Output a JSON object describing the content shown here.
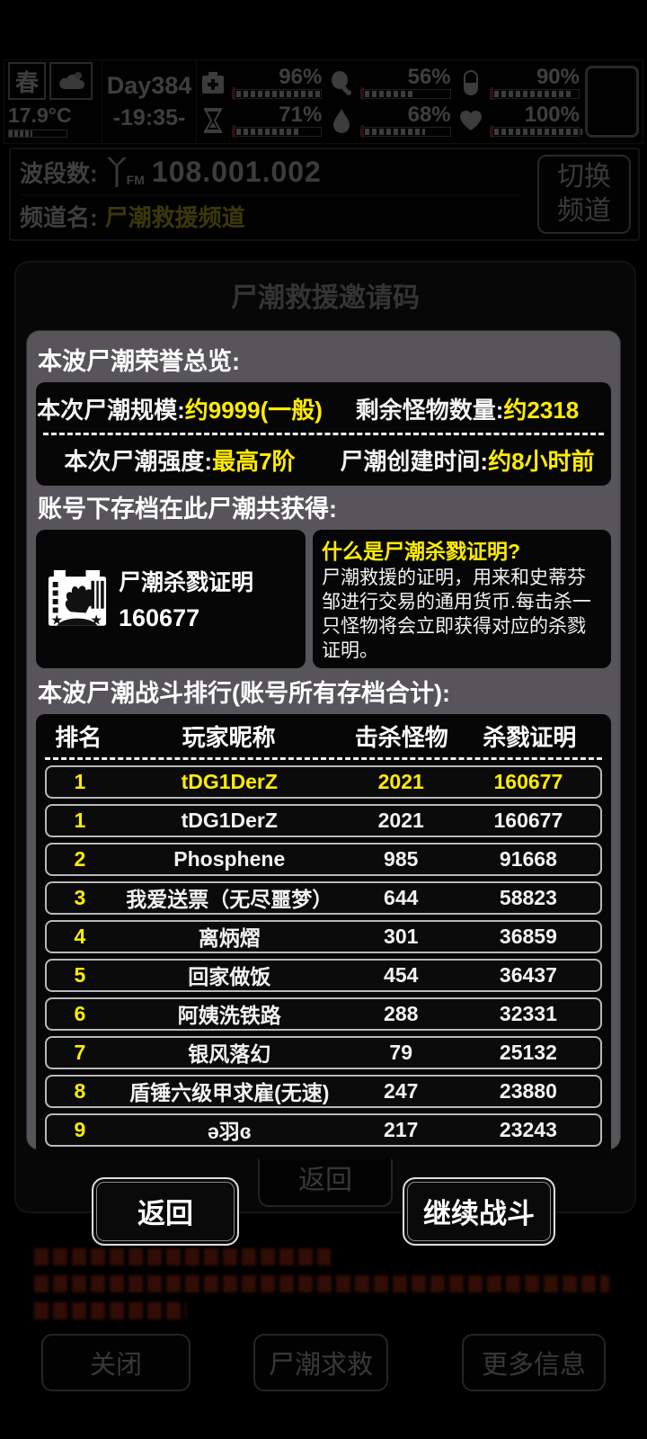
{
  "status_bar": {
    "season": "春",
    "temperature": "17.9°C",
    "day": "Day384",
    "time": "-19:35-",
    "stats": [
      {
        "icon": "medkit-icon",
        "value": "96%"
      },
      {
        "icon": "hourglass-icon",
        "value": "71%"
      },
      {
        "icon": "food-icon",
        "value": "56%"
      },
      {
        "icon": "water-icon",
        "value": "68%"
      },
      {
        "icon": "pill-icon",
        "value": "90%"
      },
      {
        "icon": "heart-icon",
        "value": "100%"
      }
    ]
  },
  "radio": {
    "band_label": "波段数:",
    "fm_label": "FM",
    "band_value": "108.001.002",
    "channel_label": "频道名:",
    "channel_value": "尸潮救援频道",
    "switch_line1": "切换",
    "switch_line2": "频道"
  },
  "background_dialog": {
    "title": "尸潮救援邀请码",
    "back_button": "返回",
    "bottom_buttons": [
      "关闭",
      "尸潮求救",
      "更多信息"
    ]
  },
  "modal": {
    "honor_title": "本波尸潮荣誉总览:",
    "stats": {
      "scale_label": "本次尸潮规模:",
      "scale_value": "约9999(一般)",
      "remaining_label": "剩余怪物数量:",
      "remaining_value": "约2318",
      "strength_label": "本次尸潮强度:",
      "strength_value": "最高7阶",
      "created_label": "尸潮创建时间:",
      "created_value": "约8小时前"
    },
    "account_title": "账号下存档在此尸潮共获得:",
    "certificate": {
      "name": "尸潮杀戮证明",
      "amount": "160677"
    },
    "info": {
      "question": "什么是尸潮杀戮证明?",
      "description": "尸潮救援的证明，用来和史蒂芬邹进行交易的通用货币.每击杀一只怪物将会立即获得对应的杀戮证明。"
    },
    "ranking_title": "本波尸潮战斗排行(账号所有存档合计):",
    "table": {
      "headers": [
        "排名",
        "玩家昵称",
        "击杀怪物",
        "杀戮证明"
      ],
      "rows": [
        {
          "rank": "1",
          "name": "tDG1DerZ",
          "kills": "2021",
          "proof": "160677",
          "highlight": true
        },
        {
          "rank": "1",
          "name": "tDG1DerZ",
          "kills": "2021",
          "proof": "160677"
        },
        {
          "rank": "2",
          "name": "Phosphene",
          "kills": "985",
          "proof": "91668"
        },
        {
          "rank": "3",
          "name": "我爱送票（无尽噩梦）",
          "kills": "644",
          "proof": "58823"
        },
        {
          "rank": "4",
          "name": "离炳熠",
          "kills": "301",
          "proof": "36859"
        },
        {
          "rank": "5",
          "name": "回家做饭",
          "kills": "454",
          "proof": "36437"
        },
        {
          "rank": "6",
          "name": "阿姨洗铁路",
          "kills": "288",
          "proof": "32331"
        },
        {
          "rank": "7",
          "name": "银风落幻",
          "kills": "79",
          "proof": "25132"
        },
        {
          "rank": "8",
          "name": "盾锤六级甲求雇(无速)",
          "kills": "247",
          "proof": "23880"
        },
        {
          "rank": "9",
          "name": "ə羽ɞ",
          "kills": "217",
          "proof": "23243"
        }
      ]
    },
    "back_button": "返回",
    "continue_button": "继续战斗"
  },
  "colors": {
    "accent_yellow": "#ffec00",
    "panel_gray": "#57555a",
    "alert_red": "#c23315"
  }
}
